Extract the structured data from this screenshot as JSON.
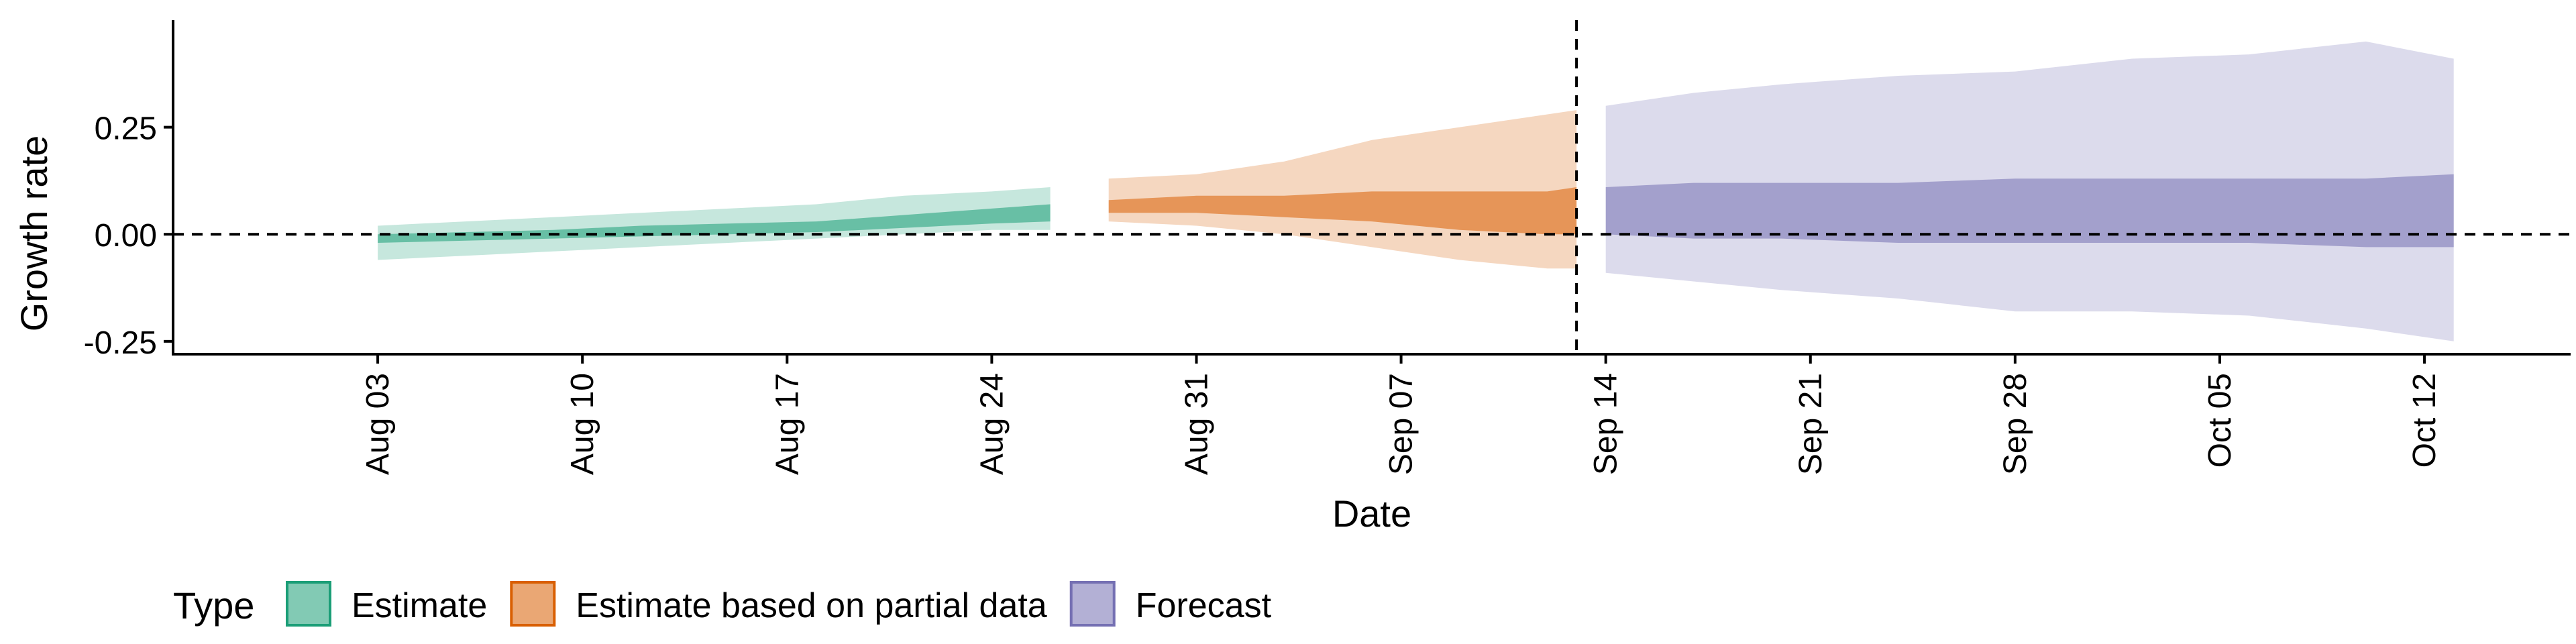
{
  "chart_data": {
    "type": "area",
    "title": "",
    "xlabel": "Date",
    "ylabel": "Growth rate",
    "xlim": [
      "2020-07-27",
      "2020-10-17"
    ],
    "ylim": [
      -0.28,
      0.5
    ],
    "x_ticks": [
      "2020-08-03",
      "2020-08-10",
      "2020-08-17",
      "2020-08-24",
      "2020-08-31",
      "2020-09-07",
      "2020-09-14",
      "2020-09-21",
      "2020-09-28",
      "2020-10-05",
      "2020-10-12"
    ],
    "x_tick_labels": [
      "Aug 03",
      "Aug 10",
      "Aug 17",
      "Aug 24",
      "Aug 31",
      "Sep 07",
      "Sep 14",
      "Sep 21",
      "Sep 28",
      "Oct 05",
      "Oct 12"
    ],
    "y_ticks": [
      -0.25,
      0.0,
      0.25
    ],
    "y_tick_labels": [
      "-0.25",
      "0.00",
      "0.25"
    ],
    "reference_lines": {
      "horizontal_y": 0.0,
      "vertical_date": "2020-09-13"
    },
    "legend": {
      "title": "Type",
      "position": "bottom-left"
    },
    "series": [
      {
        "name": "Estimate",
        "color": "#1b9e77",
        "points": [
          {
            "date": "2020-08-03",
            "lo90": -0.06,
            "lo50": -0.02,
            "hi50": 0.0,
            "hi90": 0.02
          },
          {
            "date": "2020-08-06",
            "lo90": -0.05,
            "lo50": -0.015,
            "hi50": 0.005,
            "hi90": 0.03
          },
          {
            "date": "2020-08-09",
            "lo90": -0.04,
            "lo50": -0.01,
            "hi50": 0.01,
            "hi90": 0.04
          },
          {
            "date": "2020-08-12",
            "lo90": -0.03,
            "lo50": -0.005,
            "hi50": 0.02,
            "hi90": 0.05
          },
          {
            "date": "2020-08-15",
            "lo90": -0.02,
            "lo50": 0.0,
            "hi50": 0.025,
            "hi90": 0.06
          },
          {
            "date": "2020-08-18",
            "lo90": -0.01,
            "lo50": 0.005,
            "hi50": 0.03,
            "hi90": 0.07
          },
          {
            "date": "2020-08-21",
            "lo90": 0.0,
            "lo50": 0.015,
            "hi50": 0.045,
            "hi90": 0.09
          },
          {
            "date": "2020-08-24",
            "lo90": 0.01,
            "lo50": 0.025,
            "hi50": 0.06,
            "hi90": 0.1
          },
          {
            "date": "2020-08-26",
            "lo90": 0.01,
            "lo50": 0.03,
            "hi50": 0.07,
            "hi90": 0.11
          }
        ]
      },
      {
        "name": "Estimate based on partial data",
        "color": "#d95f02",
        "points": [
          {
            "date": "2020-08-28",
            "lo90": 0.03,
            "lo50": 0.05,
            "hi50": 0.08,
            "hi90": 0.13
          },
          {
            "date": "2020-08-31",
            "lo90": 0.02,
            "lo50": 0.05,
            "hi50": 0.09,
            "hi90": 0.14
          },
          {
            "date": "2020-09-03",
            "lo90": 0.0,
            "lo50": 0.04,
            "hi50": 0.09,
            "hi90": 0.17
          },
          {
            "date": "2020-09-06",
            "lo90": -0.03,
            "lo50": 0.03,
            "hi50": 0.1,
            "hi90": 0.22
          },
          {
            "date": "2020-09-09",
            "lo90": -0.06,
            "lo50": 0.01,
            "hi50": 0.1,
            "hi90": 0.25
          },
          {
            "date": "2020-09-12",
            "lo90": -0.08,
            "lo50": 0.0,
            "hi50": 0.1,
            "hi90": 0.28
          },
          {
            "date": "2020-09-13",
            "lo90": -0.08,
            "lo50": 0.0,
            "hi50": 0.11,
            "hi90": 0.29
          }
        ]
      },
      {
        "name": "Forecast",
        "color": "#7570b3",
        "points": [
          {
            "date": "2020-09-14",
            "lo90": -0.09,
            "lo50": 0.0,
            "hi50": 0.11,
            "hi90": 0.3
          },
          {
            "date": "2020-09-17",
            "lo90": -0.11,
            "lo50": -0.01,
            "hi50": 0.12,
            "hi90": 0.33
          },
          {
            "date": "2020-09-20",
            "lo90": -0.13,
            "lo50": -0.01,
            "hi50": 0.12,
            "hi90": 0.35
          },
          {
            "date": "2020-09-24",
            "lo90": -0.15,
            "lo50": -0.02,
            "hi50": 0.12,
            "hi90": 0.37
          },
          {
            "date": "2020-09-28",
            "lo90": -0.18,
            "lo50": -0.02,
            "hi50": 0.13,
            "hi90": 0.38
          },
          {
            "date": "2020-10-02",
            "lo90": -0.18,
            "lo50": -0.02,
            "hi50": 0.13,
            "hi90": 0.41
          },
          {
            "date": "2020-10-06",
            "lo90": -0.19,
            "lo50": -0.02,
            "hi50": 0.13,
            "hi90": 0.42
          },
          {
            "date": "2020-10-10",
            "lo90": -0.22,
            "lo50": -0.03,
            "hi50": 0.13,
            "hi90": 0.45
          },
          {
            "date": "2020-10-13",
            "lo90": -0.25,
            "lo50": -0.03,
            "hi50": 0.14,
            "hi90": 0.41
          }
        ]
      }
    ]
  }
}
